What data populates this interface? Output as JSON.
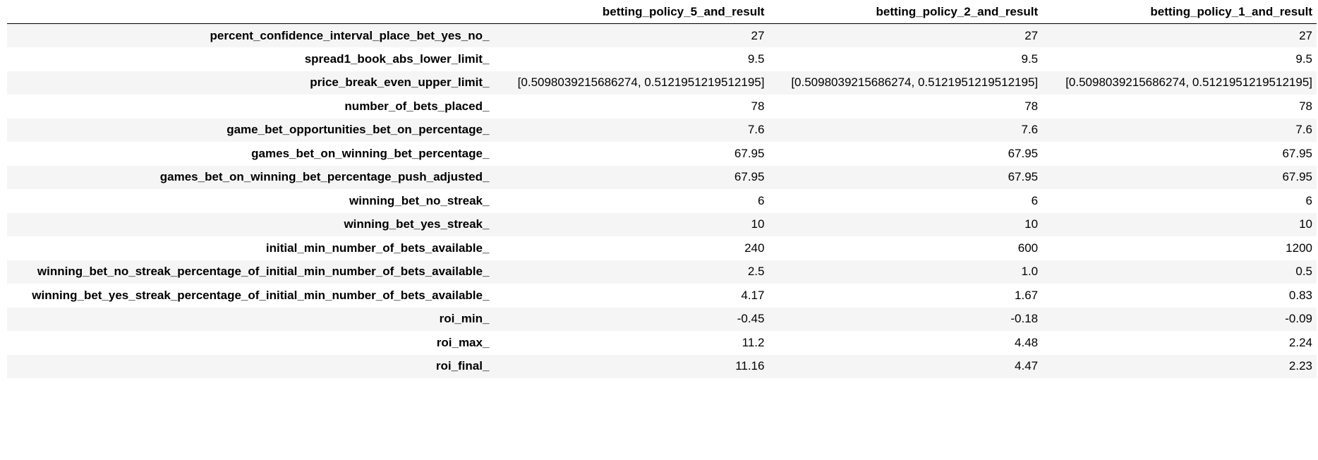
{
  "table": {
    "columns": [
      "",
      "betting_policy_5_and_result",
      "betting_policy_2_and_result",
      "betting_policy_1_and_result"
    ],
    "rows": [
      {
        "label": "percent_confidence_interval_place_bet_yes_no_",
        "values": [
          "27",
          "27",
          "27"
        ]
      },
      {
        "label": "spread1_book_abs_lower_limit_",
        "values": [
          "9.5",
          "9.5",
          "9.5"
        ]
      },
      {
        "label": "price_break_even_upper_limit_",
        "values": [
          "[0.5098039215686274, 0.5121951219512195]",
          "[0.5098039215686274, 0.5121951219512195]",
          "[0.5098039215686274, 0.5121951219512195]"
        ]
      },
      {
        "label": "number_of_bets_placed_",
        "values": [
          "78",
          "78",
          "78"
        ]
      },
      {
        "label": "game_bet_opportunities_bet_on_percentage_",
        "values": [
          "7.6",
          "7.6",
          "7.6"
        ]
      },
      {
        "label": "games_bet_on_winning_bet_percentage_",
        "values": [
          "67.95",
          "67.95",
          "67.95"
        ]
      },
      {
        "label": "games_bet_on_winning_bet_percentage_push_adjusted_",
        "values": [
          "67.95",
          "67.95",
          "67.95"
        ]
      },
      {
        "label": "winning_bet_no_streak_",
        "values": [
          "6",
          "6",
          "6"
        ]
      },
      {
        "label": "winning_bet_yes_streak_",
        "values": [
          "10",
          "10",
          "10"
        ]
      },
      {
        "label": "initial_min_number_of_bets_available_",
        "values": [
          "240",
          "600",
          "1200"
        ]
      },
      {
        "label": "winning_bet_no_streak_percentage_of_initial_min_number_of_bets_available_",
        "values": [
          "2.5",
          "1.0",
          "0.5"
        ]
      },
      {
        "label": "winning_bet_yes_streak_percentage_of_initial_min_number_of_bets_available_",
        "values": [
          "4.17",
          "1.67",
          "0.83"
        ]
      },
      {
        "label": "roi_min_",
        "values": [
          "-0.45",
          "-0.18",
          "-0.09"
        ]
      },
      {
        "label": "roi_max_",
        "values": [
          "11.2",
          "4.48",
          "2.24"
        ]
      },
      {
        "label": "roi_final_",
        "values": [
          "11.16",
          "4.47",
          "2.23"
        ]
      }
    ]
  },
  "colors": {
    "stripe": "#f5f5f5",
    "header_rule": "#000000",
    "text": "#000000"
  }
}
